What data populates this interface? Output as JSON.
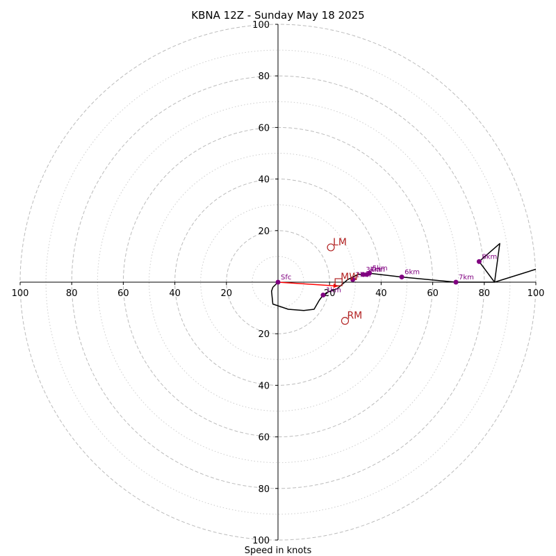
{
  "chart_data": {
    "type": "scatter",
    "title": "KBNA 12Z - Sunday May 18 2025",
    "xlabel": "Speed in knots",
    "ylabel": "",
    "xlim": [
      -100,
      100
    ],
    "ylim": [
      -100,
      100
    ],
    "rings_major": [
      20,
      40,
      60,
      80,
      100
    ],
    "rings_minor": [
      10,
      30,
      50,
      70,
      90
    ],
    "ticks_right": [
      "20",
      "40",
      "60",
      "80",
      "100"
    ],
    "ticks_left": [
      "100",
      "80",
      "60",
      "40",
      "20"
    ],
    "ticks_up": [
      "20",
      "40",
      "60",
      "80",
      "100"
    ],
    "ticks_down": [
      "20",
      "40",
      "60",
      "80",
      "100"
    ],
    "hodograph": {
      "u": [
        0,
        -2,
        -2.5,
        -2,
        4,
        10,
        14,
        16,
        17.5,
        19,
        23,
        27,
        31,
        33,
        35,
        48,
        69,
        84,
        86,
        78,
        84,
        100
      ],
      "v": [
        0,
        -2,
        -3.5,
        -8.5,
        -10.5,
        -11,
        -10.5,
        -7,
        -5,
        -4,
        -2.5,
        1,
        3,
        3,
        3.5,
        2,
        0,
        0,
        15,
        8,
        0,
        5
      ]
    },
    "height_markers": [
      {
        "label": "Sfc",
        "u": 0,
        "v": 0
      },
      {
        "label": "1km",
        "u": 17.5,
        "v": -5
      },
      {
        "label": "2km",
        "u": 29,
        "v": 1
      },
      {
        "label": "3km",
        "u": 33,
        "v": 3
      },
      {
        "label": "4km",
        "u": 34.5,
        "v": 3
      },
      {
        "label": "5km",
        "u": 35.5,
        "v": 3.5
      },
      {
        "label": "6km",
        "u": 48,
        "v": 2
      },
      {
        "label": "7km",
        "u": 69,
        "v": 0
      },
      {
        "label": "8km",
        "u": 78,
        "v": 8
      }
    ],
    "storm_motion": [
      {
        "label": "LM",
        "u": 20.5,
        "v": 13.5,
        "marker": "circle"
      },
      {
        "label": "RM",
        "u": 26,
        "v": -15,
        "marker": "circle"
      },
      {
        "label": "MW",
        "u": 23.5,
        "v": 0,
        "marker": "square"
      }
    ],
    "mean_wind_vector": {
      "from": [
        0,
        0
      ],
      "to": [
        23.5,
        -1.5
      ]
    },
    "colors": {
      "hodograph": "#000000",
      "height_markers": "#800080",
      "storm_motion": "#b22222",
      "mean_wind_vector": "#ff0000",
      "grid": "#bbbbbb"
    },
    "grid": true
  }
}
